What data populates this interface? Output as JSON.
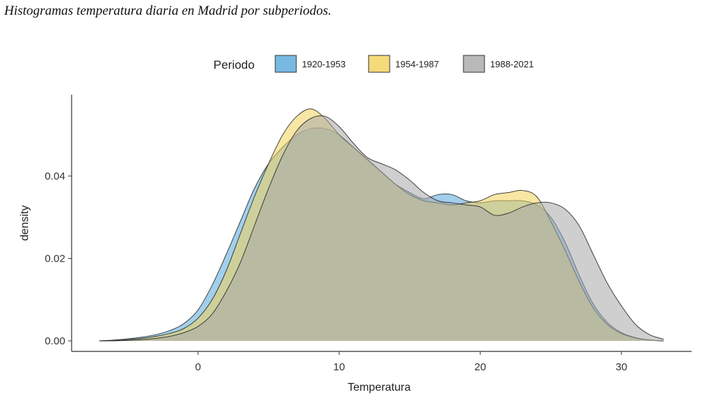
{
  "chart_data": {
    "type": "area",
    "title": "Histogramas temperatura diaria en Madrid por subperiodos.",
    "xlabel": "Temperatura",
    "ylabel": "density",
    "xlim": [
      -8,
      34
    ],
    "ylim": [
      0,
      0.06
    ],
    "x_ticks": [
      "0",
      "10",
      "20",
      "30"
    ],
    "y_ticks": [
      "0.00",
      "0.02",
      "0.04"
    ],
    "grid": false,
    "legend": {
      "title": "Periodo",
      "position": "top"
    },
    "x": [
      -7,
      -6,
      -5,
      -4,
      -3,
      -2,
      -1,
      0,
      1,
      2,
      3,
      4,
      5,
      6,
      7,
      8,
      9,
      10,
      11,
      12,
      13,
      14,
      15,
      16,
      17,
      18,
      19,
      20,
      21,
      22,
      23,
      24,
      25,
      26,
      27,
      28,
      29,
      30,
      31,
      32,
      33
    ],
    "series": [
      {
        "name": "1920-1953",
        "color": "#56a8dc",
        "values": [
          0,
          0.0002,
          0.0005,
          0.0009,
          0.0015,
          0.0025,
          0.0042,
          0.0075,
          0.0135,
          0.021,
          0.029,
          0.037,
          0.043,
          0.047,
          0.05,
          0.0515,
          0.0515,
          0.05,
          0.047,
          0.044,
          0.041,
          0.038,
          0.036,
          0.0345,
          0.0355,
          0.0355,
          0.034,
          0.0335,
          0.034,
          0.034,
          0.034,
          0.033,
          0.03,
          0.024,
          0.016,
          0.009,
          0.0045,
          0.002,
          0.0008,
          0.0002,
          0
        ]
      },
      {
        "name": "1954-1987",
        "color": "#f2d15a",
        "values": [
          0,
          0.0001,
          0.0003,
          0.0006,
          0.0011,
          0.0018,
          0.003,
          0.0055,
          0.01,
          0.017,
          0.026,
          0.035,
          0.043,
          0.05,
          0.0545,
          0.0563,
          0.054,
          0.05,
          0.047,
          0.044,
          0.041,
          0.038,
          0.0355,
          0.034,
          0.0335,
          0.033,
          0.0335,
          0.034,
          0.0355,
          0.036,
          0.0365,
          0.035,
          0.029,
          0.022,
          0.0145,
          0.008,
          0.004,
          0.0018,
          0.0007,
          0.0002,
          0
        ]
      },
      {
        "name": "1988-2021",
        "color": "#a8a8a8",
        "values": [
          0,
          0,
          0.0001,
          0.0003,
          0.0006,
          0.0011,
          0.002,
          0.0035,
          0.0065,
          0.012,
          0.019,
          0.028,
          0.037,
          0.045,
          0.051,
          0.054,
          0.0545,
          0.052,
          0.048,
          0.0445,
          0.043,
          0.0415,
          0.039,
          0.036,
          0.034,
          0.0335,
          0.033,
          0.0325,
          0.0305,
          0.031,
          0.0325,
          0.0335,
          0.0335,
          0.032,
          0.028,
          0.021,
          0.014,
          0.0085,
          0.004,
          0.0015,
          0.0004
        ]
      }
    ]
  }
}
